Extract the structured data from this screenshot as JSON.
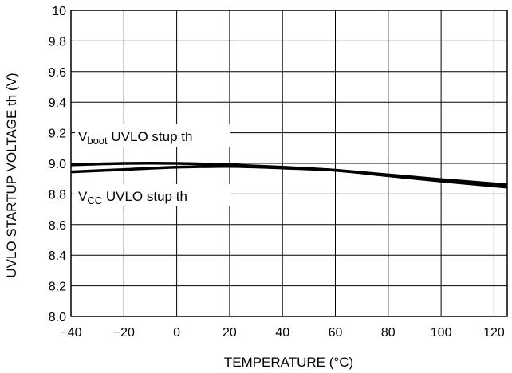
{
  "chart_data": {
    "type": "line",
    "xlabel": "TEMPERATURE (°C)",
    "ylabel": "UVLO STARTUP VOLTAGE th (V)",
    "xlim": [
      -40,
      125
    ],
    "ylim": [
      8.0,
      10.0
    ],
    "x_ticks": [
      -40,
      -20,
      0,
      20,
      40,
      60,
      80,
      100,
      120
    ],
    "x_tick_labels": [
      "−40",
      "−20",
      "0",
      "20",
      "40",
      "60",
      "80",
      "100",
      "120"
    ],
    "y_ticks": [
      8.0,
      8.2,
      8.4,
      8.6,
      8.8,
      9.0,
      9.2,
      9.4,
      9.6,
      9.8,
      10.0
    ],
    "y_tick_labels": [
      "8.0",
      "8.2",
      "8.4",
      "8.6",
      "8.8",
      "9.0",
      "9.2",
      "9.4",
      "9.6",
      "9.8",
      "10"
    ],
    "grid": true,
    "series": [
      {
        "name": "Vboot UVLO stup th",
        "label_main": "V",
        "label_sub": "boot",
        "label_rest": " UVLO stup th",
        "x": [
          -40,
          -20,
          0,
          20,
          40,
          60,
          80,
          100,
          125
        ],
        "y": [
          8.99,
          9.0,
          9.0,
          8.99,
          8.975,
          8.955,
          8.92,
          8.885,
          8.845
        ]
      },
      {
        "name": "VCC UVLO stup th",
        "label_main": "V",
        "label_sub": "CC",
        "label_rest": " UVLO stup th",
        "x": [
          -40,
          -20,
          0,
          20,
          40,
          60,
          80,
          100,
          125
        ],
        "y": [
          8.945,
          8.96,
          8.975,
          8.98,
          8.97,
          8.955,
          8.925,
          8.895,
          8.86
        ]
      }
    ]
  }
}
